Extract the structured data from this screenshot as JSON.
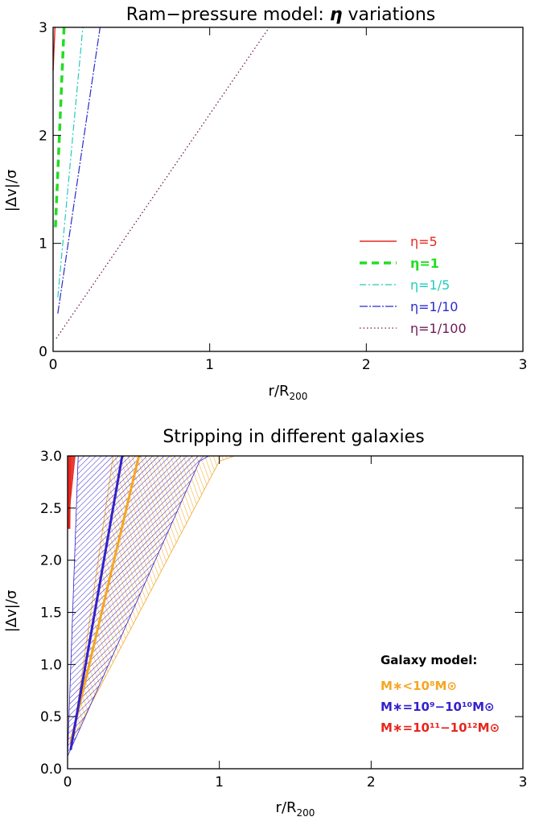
{
  "chart_data": [
    {
      "type": "line",
      "title_text": "Ram−pressure model: ",
      "title_symbol": "η",
      "title_suffix": " variations",
      "xlabel_main": "r/R",
      "xlabel_sub": "200",
      "ylabel": "|Δv|/σ",
      "xlim": [
        0,
        3
      ],
      "ylim": [
        0,
        3
      ],
      "xticks": [
        {
          "v": 0,
          "label": "0"
        },
        {
          "v": 1,
          "label": "1"
        },
        {
          "v": 2,
          "label": "2"
        },
        {
          "v": 3,
          "label": "3"
        }
      ],
      "yticks": [
        {
          "v": 0,
          "label": "0"
        },
        {
          "v": 1,
          "label": "1"
        },
        {
          "v": 2,
          "label": "2"
        },
        {
          "v": 3,
          "label": "3"
        }
      ],
      "legend_position": "bottom-right",
      "series": [
        {
          "name": "η=5",
          "color": "#e8261e",
          "dash": "",
          "width": 1.4,
          "legend_bold": false,
          "legend_size": 16,
          "x": [
            0.0,
            0.012
          ],
          "y": [
            2.6,
            3.0
          ]
        },
        {
          "name": "η=1",
          "color": "#22dd22",
          "dash": "9,6",
          "width": 3.5,
          "legend_bold": true,
          "legend_size": 21,
          "x": [
            0.015,
            0.07
          ],
          "y": [
            1.15,
            3.0
          ]
        },
        {
          "name": "η=1/5",
          "color": "#22ccbb",
          "dash": "8,3,2,3",
          "width": 1.2,
          "legend_bold": false,
          "legend_size": 16,
          "x": [
            0.03,
            0.19
          ],
          "y": [
            0.5,
            3.0
          ]
        },
        {
          "name": "η=1/10",
          "color": "#2a2acc",
          "dash": "10,2,2,2",
          "width": 1.2,
          "legend_bold": false,
          "legend_size": 16,
          "x": [
            0.03,
            0.3
          ],
          "y": [
            0.35,
            3.0
          ]
        },
        {
          "name": "η=1/100",
          "color": "#6e1a55",
          "dash": "1.5,3",
          "width": 1.3,
          "legend_bold": false,
          "legend_size": 16,
          "x": [
            0.02,
            1.38
          ],
          "y": [
            0.12,
            3.0
          ]
        }
      ]
    },
    {
      "type": "area",
      "title": "Stripping in different galaxies",
      "xlabel_main": "r/R",
      "xlabel_sub": "200",
      "ylabel": "|Δv|/σ",
      "xlim": [
        0,
        3
      ],
      "ylim": [
        0,
        3
      ],
      "xticks": [
        {
          "v": 0,
          "label": "0"
        },
        {
          "v": 1,
          "label": "1"
        },
        {
          "v": 2,
          "label": "2"
        },
        {
          "v": 3,
          "label": "3"
        }
      ],
      "yticks": [
        {
          "v": 0.0,
          "label": "0.0"
        },
        {
          "v": 0.5,
          "label": "0.5"
        },
        {
          "v": 1.0,
          "label": "1.0"
        },
        {
          "v": 1.5,
          "label": "1.5"
        },
        {
          "v": 2.0,
          "label": "2.0"
        },
        {
          "v": 2.5,
          "label": "2.5"
        },
        {
          "v": 3.0,
          "label": "3.0"
        }
      ],
      "legend_title": "Galaxy model:",
      "legend_position": "bottom-right",
      "series": [
        {
          "name": "M∗<10⁸M⊙",
          "color": "#f5a623",
          "band": [
            [
              0.03,
              0.25
            ],
            [
              0.3,
              3.0
            ],
            [
              1.1,
              3.0
            ],
            [
              1.0,
              2.95
            ],
            [
              0.02,
              0.25
            ]
          ],
          "center": [
            [
              0.02,
              0.25
            ],
            [
              0.47,
              3.0
            ]
          ]
        },
        {
          "name": "M∗=10⁹−10¹⁰M⊙",
          "color": "#3322cc",
          "band": [
            [
              0.0,
              0.12
            ],
            [
              0.07,
              3.0
            ],
            [
              0.93,
              3.0
            ],
            [
              0.87,
              2.95
            ],
            [
              0.0,
              0.12
            ]
          ],
          "center": [
            [
              0.02,
              0.18
            ],
            [
              0.36,
              3.0
            ]
          ]
        },
        {
          "name": "M∗=10¹¹−10¹²M⊙",
          "color": "#e8261e",
          "band": [],
          "center": [
            [
              0.01,
              2.3
            ],
            [
              0.015,
              3.0
            ]
          ]
        }
      ]
    }
  ]
}
